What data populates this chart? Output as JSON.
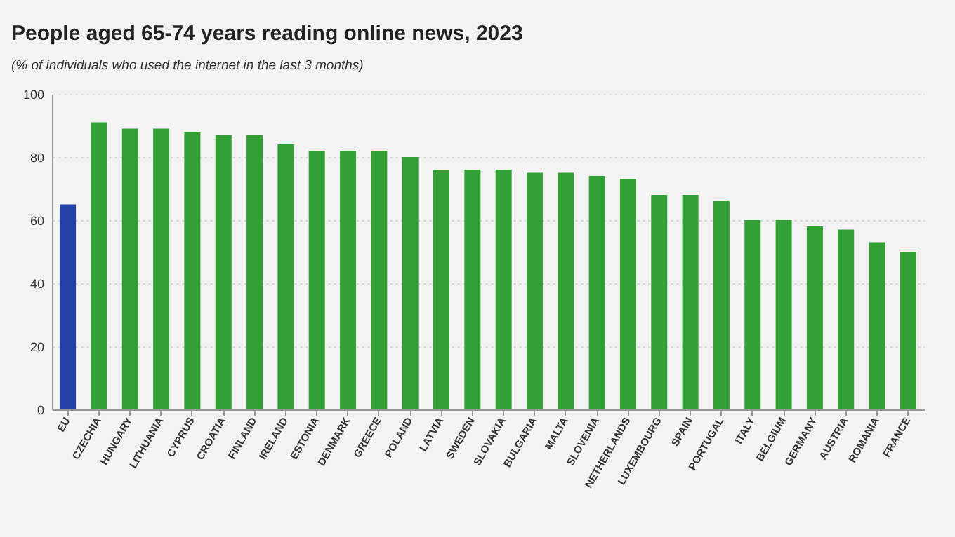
{
  "chart_data": {
    "type": "bar",
    "title": "People aged 65-74 years reading online news, 2023",
    "subtitle": "(% of individuals who used the internet in the last 3 months)",
    "categories": [
      "EU",
      "CZECHIA",
      "HUNGARY",
      "LITHUANIA",
      "CYPRUS",
      "CROATIA",
      "FINLAND",
      "IRELAND",
      "ESTONIA",
      "DENMARK",
      "GREECE",
      "POLAND",
      "LATVIA",
      "SWEDEN",
      "SLOVAKIA",
      "BULGARIA",
      "MALTA",
      "SLOVENIA",
      "NETHERLANDS",
      "LUXEMBOURG",
      "SPAIN",
      "PORTUGAL",
      "ITALY",
      "BELGIUM",
      "GERMANY",
      "AUSTRIA",
      "ROMANIA",
      "FRANCE"
    ],
    "values": [
      65,
      91,
      89,
      89,
      88,
      87,
      87,
      84,
      82,
      82,
      82,
      80,
      76,
      76,
      76,
      75,
      75,
      74,
      73,
      68,
      68,
      66,
      60,
      60,
      58,
      57,
      53,
      50
    ],
    "colors": [
      "#2441a6",
      "#33a036",
      "#33a036",
      "#33a036",
      "#33a036",
      "#33a036",
      "#33a036",
      "#33a036",
      "#33a036",
      "#33a036",
      "#33a036",
      "#33a036",
      "#33a036",
      "#33a036",
      "#33a036",
      "#33a036",
      "#33a036",
      "#33a036",
      "#33a036",
      "#33a036",
      "#33a036",
      "#33a036",
      "#33a036",
      "#33a036",
      "#33a036",
      "#33a036",
      "#33a036",
      "#33a036"
    ],
    "ylim": [
      0,
      100
    ],
    "yticks": [
      0,
      20,
      40,
      60,
      80,
      100
    ],
    "grid": "y"
  }
}
